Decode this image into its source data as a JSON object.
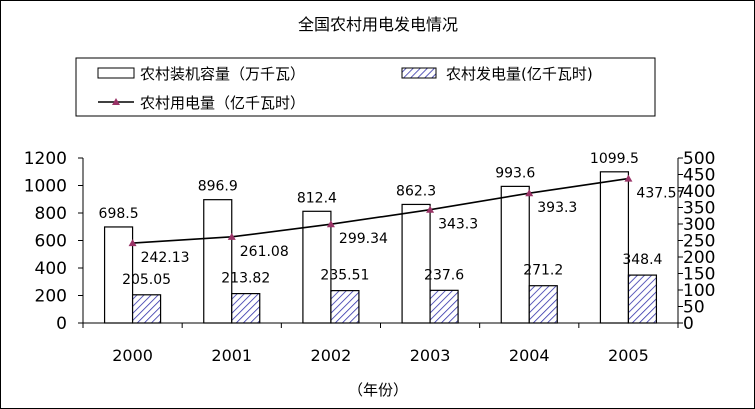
{
  "chart_data": {
    "type": "bar",
    "title": "全国农村用电发电情况",
    "xlabel": "（年份）",
    "categories": [
      "2000",
      "2001",
      "2002",
      "2003",
      "2004",
      "2005"
    ],
    "y_left": {
      "ylim": [
        0,
        1200
      ],
      "ticks": [
        0,
        200,
        400,
        600,
        800,
        1000,
        1200
      ]
    },
    "y_right": {
      "ylim": [
        0,
        500
      ],
      "ticks": [
        0,
        50,
        100,
        150,
        200,
        250,
        300,
        350,
        400,
        450,
        500
      ]
    },
    "series": [
      {
        "name": "农村装机容量（万千瓦）",
        "type": "bar",
        "axis": "left",
        "style": "open",
        "values": [
          698.5,
          896.9,
          812.4,
          862.3,
          993.6,
          1099.5
        ],
        "labels": [
          "698.5",
          "896.9",
          "812.4",
          "862.3",
          "993.6",
          "1099.5"
        ]
      },
      {
        "name": "农村发电量(亿千瓦时)",
        "type": "bar",
        "axis": "left",
        "style": "hatched",
        "values": [
          205.05,
          213.82,
          235.51,
          237.6,
          271.2,
          348.4
        ],
        "labels": [
          "205.05",
          "213.82",
          "235.51",
          "237.6",
          "271.2",
          "348.4"
        ]
      },
      {
        "name": "农村用电量（亿千瓦时）",
        "type": "line",
        "axis": "right",
        "values": [
          242.13,
          261.08,
          299.34,
          343.3,
          393.3,
          437.57
        ],
        "labels": [
          "242.13",
          "261.08",
          "299.34",
          "343.3",
          "393.3",
          "437.57"
        ]
      }
    ],
    "colors": {
      "line": "#000000",
      "marker": "#993366",
      "hatch": "#3333aa",
      "bar_edge": "#000000"
    },
    "grid": false,
    "legend": "top"
  }
}
